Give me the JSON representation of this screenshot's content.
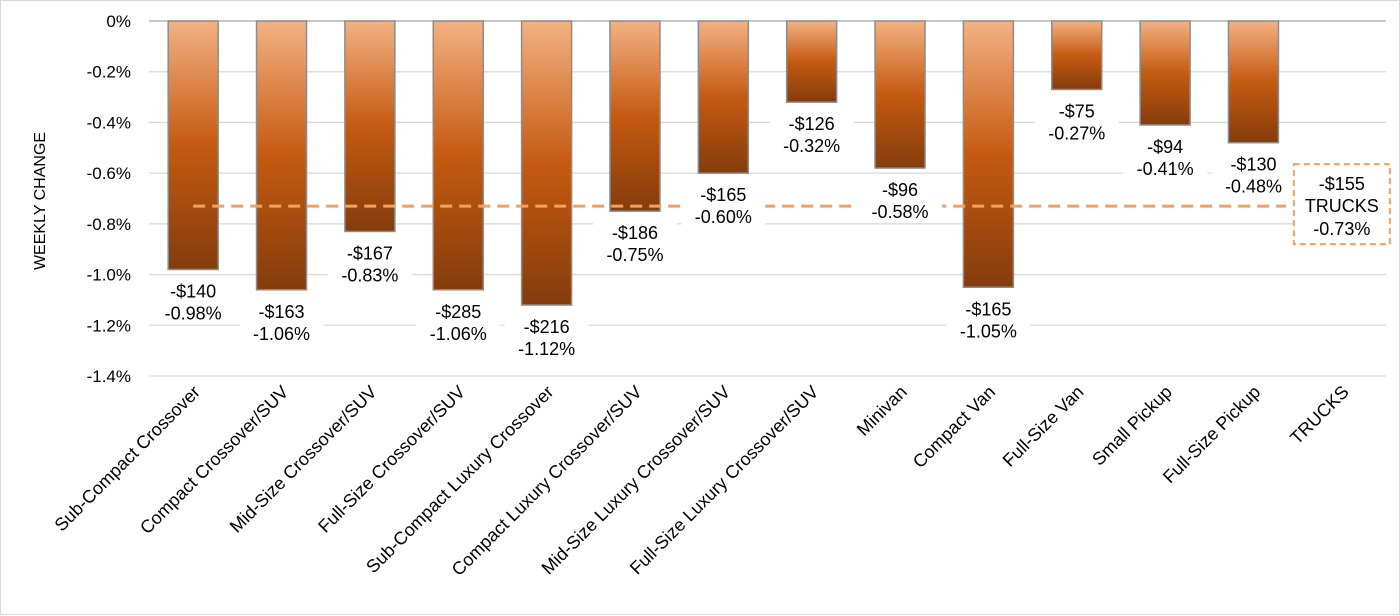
{
  "chart_data": {
    "type": "bar",
    "title": "",
    "xlabel": "",
    "ylabel": "WEEKLY CHANGE",
    "ylim": [
      -1.4,
      0
    ],
    "yticks": [
      "0%",
      "-0.2%",
      "-0.4%",
      "-0.6%",
      "-0.8%",
      "-1.0%",
      "-1.2%",
      "-1.4%"
    ],
    "ytick_values": [
      0,
      -0.2,
      -0.4,
      -0.6,
      -0.8,
      -1.0,
      -1.2,
      -1.4
    ],
    "grid": true,
    "categories": [
      "Sub-Compact Crossover",
      "Compact Crossover/SUV",
      "Mid-Size Crossover/SUV",
      "Full-Size Crossover/SUV",
      "Sub-Compact Luxury Crossover",
      "Compact Luxury Crossover/SUV",
      "Mid-Size Luxury Crossover/SUV",
      "Full-Size Luxury Crossover/SUV",
      "Minivan",
      "Compact Van",
      "Full-Size Van",
      "Small Pickup",
      "Full-Size Pickup",
      "TRUCKS"
    ],
    "values": [
      -0.98,
      -1.06,
      -0.83,
      -1.06,
      -1.12,
      -0.75,
      -0.6,
      -0.32,
      -0.58,
      -1.05,
      -0.27,
      -0.41,
      -0.48,
      null
    ],
    "dollar_labels": [
      "-$140",
      "-$163",
      "-$167",
      "-$285",
      "-$216",
      "-$186",
      "-$165",
      "-$126",
      "-$96",
      "-$165",
      "-$75",
      "-$94",
      "-$130"
    ],
    "percent_labels": [
      "-0.98%",
      "-1.06%",
      "-0.83%",
      "-1.06%",
      "-1.12%",
      "-0.75%",
      "-0.60%",
      "-0.32%",
      "-0.58%",
      "-1.05%",
      "-0.27%",
      "-0.41%",
      "-0.48%"
    ],
    "average": {
      "name": "TRUCKS",
      "value": -0.73,
      "dollar_label": "-$155",
      "percent_label": "-0.73%"
    },
    "colors": {
      "bar_top": "#f4b183",
      "bar_mid": "#c55a11",
      "bar_bottom": "#843c0c",
      "bar_border": "#8c8c8c",
      "average_line": "#f4a15d",
      "grid": "#d9d9d9"
    }
  }
}
